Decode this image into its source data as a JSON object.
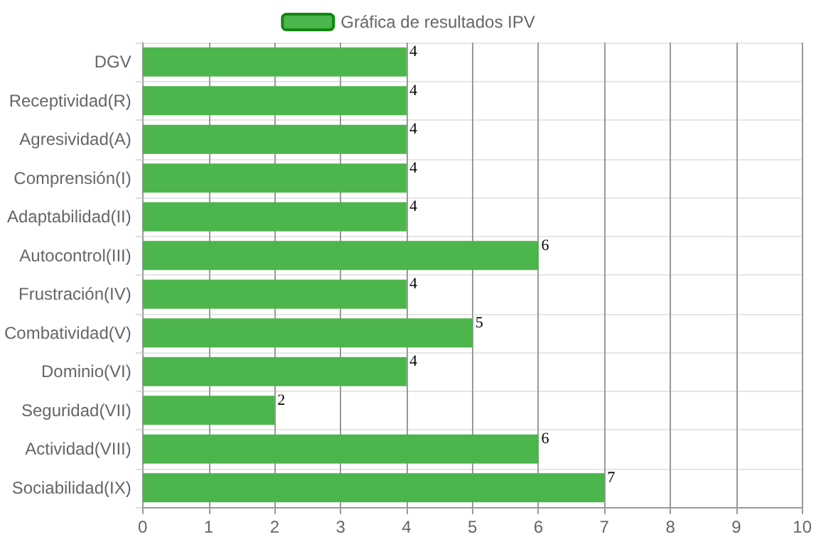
{
  "chart_data": {
    "type": "bar",
    "orientation": "horizontal",
    "categories": [
      "DGV",
      "Receptividad(R)",
      "Agresividad(A)",
      "Comprensión(I)",
      "Adaptabilidad(II)",
      "Autocontrol(III)",
      "Frustración(IV)",
      "Combatividad(V)",
      "Dominio(VI)",
      "Seguridad(VII)",
      "Actividad(VIII)",
      "Sociabilidad(IX)"
    ],
    "series": [
      {
        "name": "Gráfica de resultados IPV",
        "color": "#4cb54c",
        "values": [
          4,
          4,
          4,
          4,
          4,
          6,
          4,
          5,
          4,
          2,
          6,
          7
        ]
      }
    ],
    "xlim": [
      0,
      10
    ],
    "xticks": [
      0,
      1,
      2,
      3,
      4,
      5,
      6,
      7,
      8,
      9,
      10
    ],
    "grid": true,
    "legend": "top",
    "data_labels": true
  }
}
